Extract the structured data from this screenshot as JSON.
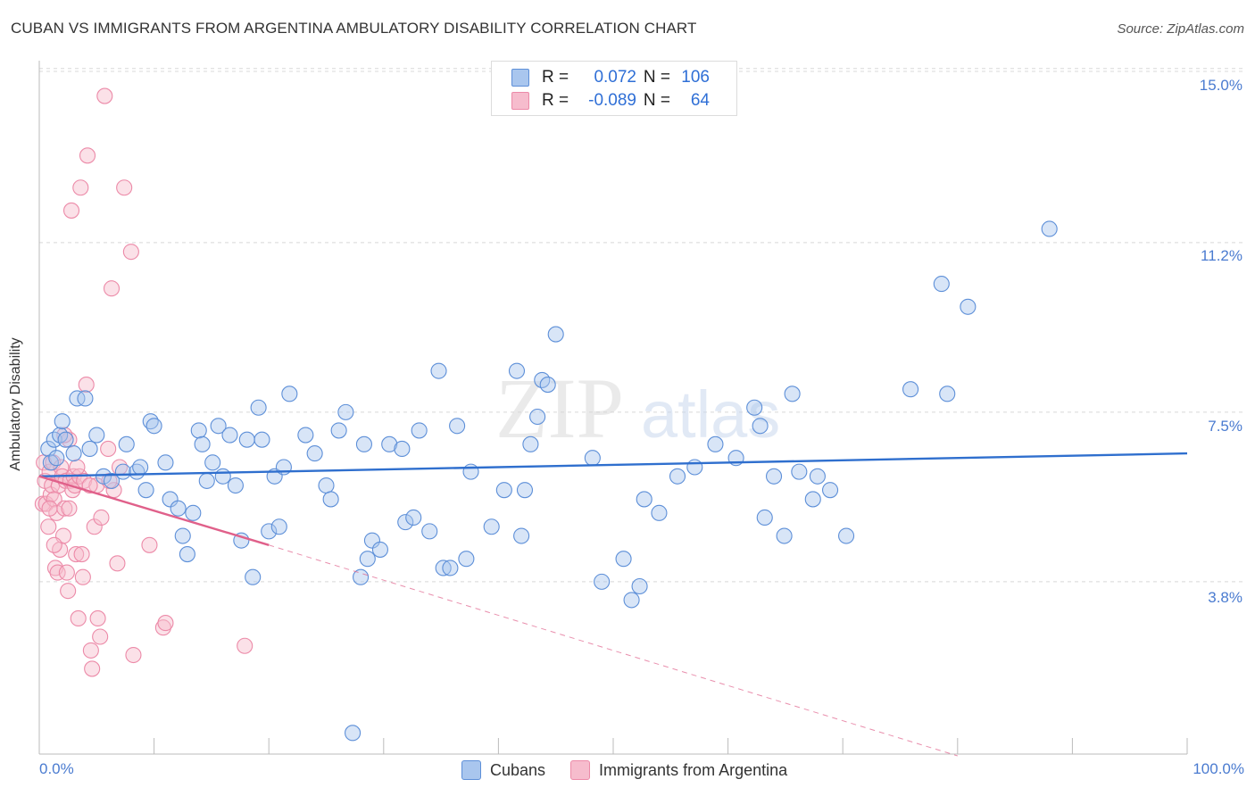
{
  "header": {
    "title": "CUBAN VS IMMIGRANTS FROM ARGENTINA AMBULATORY DISABILITY CORRELATION CHART",
    "source": "Source: ZipAtlas.com"
  },
  "legend": {
    "rows": [
      {
        "r_label": "R =",
        "r_value": "0.072",
        "n_label": "N =",
        "n_value": "106"
      },
      {
        "r_label": "R =",
        "r_value": "-0.089",
        "n_label": "N =",
        "n_value": "64"
      }
    ]
  },
  "watermark": {
    "zip": "ZIP",
    "atlas": "atlas"
  },
  "colors": {
    "cubans_fill": "#a9c6ee",
    "cubans_stroke": "#5d8fd8",
    "cubans_line": "#2f6fce",
    "argentina_fill": "#f6bccd",
    "argentina_stroke": "#ec8aa8",
    "argentina_line": "#e0608a",
    "tick_text": "#4a7bd0",
    "grid": "#d8d8d8"
  },
  "chart_data": {
    "type": "scatter",
    "title": "CUBAN VS IMMIGRANTS FROM ARGENTINA AMBULATORY DISABILITY CORRELATION CHART",
    "xlabel": "",
    "ylabel": "Ambulatory Disability",
    "xlim": [
      0,
      100
    ],
    "ylim": [
      0,
      15.6
    ],
    "x_tick_labels": [
      "0.0%",
      "100.0%"
    ],
    "y_ticks": [
      3.8,
      7.5,
      11.2,
      15.0
    ],
    "y_tick_labels": [
      "3.8%",
      "7.5%",
      "11.2%",
      "15.0%"
    ],
    "grid": true,
    "legend_position": "bottom",
    "series": [
      {
        "name": "Cubans",
        "r": 0.072,
        "n": 106,
        "trend": {
          "x": [
            0,
            100
          ],
          "y": [
            6.1,
            6.6
          ]
        },
        "points": [
          [
            0.8,
            6.7
          ],
          [
            1.0,
            6.4
          ],
          [
            1.3,
            6.9
          ],
          [
            1.5,
            6.5
          ],
          [
            1.8,
            7.0
          ],
          [
            2.0,
            7.3
          ],
          [
            2.3,
            6.9
          ],
          [
            3.0,
            6.6
          ],
          [
            3.3,
            7.8
          ],
          [
            4.0,
            7.8
          ],
          [
            4.4,
            6.7
          ],
          [
            5.0,
            7.0
          ],
          [
            5.6,
            6.1
          ],
          [
            6.3,
            6.0
          ],
          [
            7.3,
            6.2
          ],
          [
            7.6,
            6.8
          ],
          [
            8.5,
            6.2
          ],
          [
            8.8,
            6.3
          ],
          [
            9.3,
            5.8
          ],
          [
            9.7,
            7.3
          ],
          [
            10.0,
            7.2
          ],
          [
            11.0,
            6.4
          ],
          [
            11.4,
            5.6
          ],
          [
            12.1,
            5.4
          ],
          [
            12.5,
            4.8
          ],
          [
            12.9,
            4.4
          ],
          [
            13.4,
            5.3
          ],
          [
            13.9,
            7.1
          ],
          [
            14.2,
            6.8
          ],
          [
            14.6,
            6.0
          ],
          [
            15.1,
            6.4
          ],
          [
            15.6,
            7.2
          ],
          [
            16.0,
            6.1
          ],
          [
            16.6,
            7.0
          ],
          [
            17.1,
            5.9
          ],
          [
            17.6,
            4.7
          ],
          [
            18.1,
            6.9
          ],
          [
            18.6,
            3.9
          ],
          [
            19.1,
            7.6
          ],
          [
            19.4,
            6.9
          ],
          [
            20.0,
            4.9
          ],
          [
            20.5,
            6.1
          ],
          [
            20.9,
            5.0
          ],
          [
            21.3,
            6.3
          ],
          [
            21.8,
            7.9
          ],
          [
            23.2,
            7.0
          ],
          [
            24.0,
            6.6
          ],
          [
            25.0,
            5.9
          ],
          [
            25.4,
            5.6
          ],
          [
            26.1,
            7.1
          ],
          [
            26.7,
            7.5
          ],
          [
            27.3,
            0.5
          ],
          [
            28.0,
            3.9
          ],
          [
            28.3,
            6.8
          ],
          [
            28.6,
            4.3
          ],
          [
            29.0,
            4.7
          ],
          [
            29.7,
            4.5
          ],
          [
            30.5,
            6.8
          ],
          [
            31.6,
            6.7
          ],
          [
            31.9,
            5.1
          ],
          [
            32.6,
            5.2
          ],
          [
            33.1,
            7.1
          ],
          [
            34.0,
            4.9
          ],
          [
            34.8,
            8.4
          ],
          [
            35.2,
            4.1
          ],
          [
            35.8,
            4.1
          ],
          [
            36.4,
            7.2
          ],
          [
            37.2,
            4.3
          ],
          [
            37.6,
            6.2
          ],
          [
            39.4,
            5.0
          ],
          [
            40.5,
            5.8
          ],
          [
            41.6,
            8.4
          ],
          [
            42.0,
            4.8
          ],
          [
            42.3,
            5.8
          ],
          [
            42.8,
            6.8
          ],
          [
            43.4,
            7.4
          ],
          [
            43.8,
            8.2
          ],
          [
            44.3,
            8.1
          ],
          [
            45.0,
            9.2
          ],
          [
            48.2,
            6.5
          ],
          [
            49.0,
            3.8
          ],
          [
            50.9,
            4.3
          ],
          [
            51.6,
            3.4
          ],
          [
            52.3,
            3.7
          ],
          [
            52.7,
            5.6
          ],
          [
            54.0,
            5.3
          ],
          [
            55.6,
            6.1
          ],
          [
            57.1,
            6.3
          ],
          [
            58.9,
            6.8
          ],
          [
            60.7,
            6.5
          ],
          [
            62.3,
            7.6
          ],
          [
            62.8,
            7.2
          ],
          [
            63.2,
            5.2
          ],
          [
            64.0,
            6.1
          ],
          [
            64.9,
            4.8
          ],
          [
            65.6,
            7.9
          ],
          [
            66.2,
            6.2
          ],
          [
            67.4,
            5.6
          ],
          [
            67.8,
            6.1
          ],
          [
            68.9,
            5.8
          ],
          [
            70.3,
            4.8
          ],
          [
            75.9,
            8.0
          ],
          [
            78.6,
            10.3
          ],
          [
            79.1,
            7.9
          ],
          [
            80.9,
            9.8
          ],
          [
            88.0,
            11.5
          ]
        ]
      },
      {
        "name": "Immigrants from Argentina",
        "r": -0.089,
        "n": 64,
        "trend": {
          "x": [
            0,
            20
          ],
          "y": [
            6.1,
            4.6
          ],
          "dashed_extension_to": {
            "x": 80,
            "y": 0.0
          }
        },
        "points": [
          [
            0.3,
            5.5
          ],
          [
            0.4,
            6.4
          ],
          [
            0.5,
            6.0
          ],
          [
            0.6,
            5.5
          ],
          [
            0.8,
            5.0
          ],
          [
            0.9,
            6.2
          ],
          [
            1.0,
            5.7
          ],
          [
            1.1,
            5.9
          ],
          [
            1.2,
            6.4
          ],
          [
            1.3,
            5.6
          ],
          [
            1.4,
            4.1
          ],
          [
            1.5,
            5.3
          ],
          [
            1.6,
            4.0
          ],
          [
            1.7,
            5.9
          ],
          [
            1.8,
            4.5
          ],
          [
            1.9,
            6.3
          ],
          [
            2.0,
            6.1
          ],
          [
            2.1,
            4.8
          ],
          [
            2.2,
            5.4
          ],
          [
            2.3,
            6.0
          ],
          [
            2.4,
            4.0
          ],
          [
            2.5,
            3.6
          ],
          [
            2.6,
            6.9
          ],
          [
            2.7,
            6.0
          ],
          [
            2.8,
            11.9
          ],
          [
            2.9,
            5.8
          ],
          [
            3.0,
            6.1
          ],
          [
            3.1,
            5.9
          ],
          [
            3.2,
            4.4
          ],
          [
            3.4,
            3.0
          ],
          [
            3.5,
            6.1
          ],
          [
            3.6,
            12.4
          ],
          [
            3.7,
            4.4
          ],
          [
            3.8,
            3.9
          ],
          [
            3.9,
            6.0
          ],
          [
            4.1,
            8.1
          ],
          [
            4.2,
            13.1
          ],
          [
            4.5,
            2.3
          ],
          [
            4.6,
            1.9
          ],
          [
            4.8,
            5.0
          ],
          [
            5.0,
            5.9
          ],
          [
            5.1,
            3.0
          ],
          [
            5.3,
            2.6
          ],
          [
            5.4,
            5.2
          ],
          [
            5.7,
            14.4
          ],
          [
            6.0,
            6.7
          ],
          [
            6.3,
            10.2
          ],
          [
            6.5,
            5.8
          ],
          [
            6.8,
            4.2
          ],
          [
            7.0,
            6.3
          ],
          [
            7.4,
            12.4
          ],
          [
            8.0,
            11.0
          ],
          [
            8.2,
            2.2
          ],
          [
            9.6,
            4.6
          ],
          [
            10.8,
            2.8
          ],
          [
            11.0,
            2.9
          ],
          [
            17.9,
            2.4
          ],
          [
            2.2,
            7.0
          ],
          [
            0.9,
            5.4
          ],
          [
            1.3,
            4.6
          ],
          [
            2.6,
            5.4
          ],
          [
            3.3,
            6.3
          ],
          [
            4.4,
            5.9
          ],
          [
            6.1,
            6.0
          ]
        ]
      }
    ]
  },
  "bottom_legend": {
    "cubans": "Cubans",
    "argentina": "Immigrants from Argentina"
  }
}
